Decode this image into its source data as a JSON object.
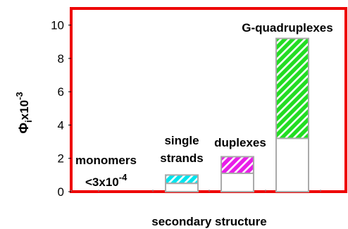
{
  "chart_data": {
    "type": "bar",
    "categories": [
      "",
      "",
      "",
      ""
    ],
    "series": [
      {
        "values": [
          0,
          0.5,
          1.1,
          3.2
        ],
        "pattern": "none"
      },
      {
        "values": [
          0,
          0.5,
          1.0,
          6.0
        ],
        "pattern": "hatched"
      }
    ],
    "bar_colors": [
      "#00e5ee",
      "#00e5ee",
      "#e81ee8",
      "#22dd22"
    ],
    "hatch_color": "#ffffff",
    "outline_color": "#aaaaaa",
    "frame_color": "#ee0000",
    "xlabel": "secondary structure",
    "ylabel": {
      "main": "Φ",
      "subscript": "i",
      "rest": "x10",
      "exponent": "-3"
    },
    "ylim": [
      0,
      11
    ],
    "yticks": [
      "0",
      "2",
      "4",
      "6",
      "8",
      "10"
    ],
    "ytick_values": [
      0,
      2,
      4,
      6,
      8,
      10
    ],
    "annotations": {
      "monomers": {
        "line1": "monomers",
        "line2_base": "<3x10",
        "line2_exp": "-4"
      },
      "single_strands": {
        "line1": "single",
        "line2": "strands"
      },
      "duplexes": "duplexes",
      "g_quadruplexes": "G-quadruplexes"
    },
    "grid": false,
    "legend": false
  }
}
